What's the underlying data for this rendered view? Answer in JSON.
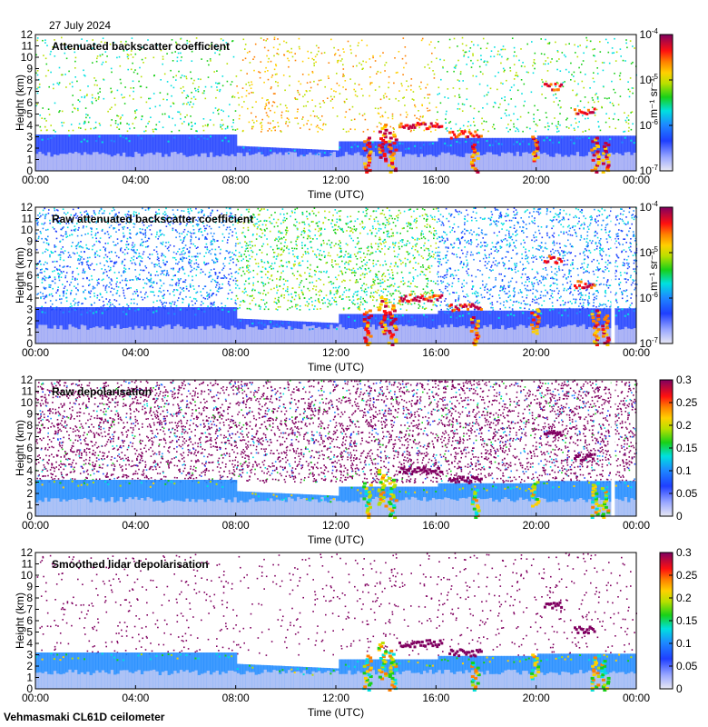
{
  "header": {
    "date": "27 July 2024"
  },
  "footer": {
    "site": "Vehmasmaki CL61D ceilometer"
  },
  "colors": {
    "plot_background": "#ffffff",
    "colormap": [
      "#e8e8f4",
      "#1f3fff",
      "#1d8aff",
      "#00e0e0",
      "#18d018",
      "#b8e000",
      "#ffd000",
      "#ff8000",
      "#ff1010",
      "#c00040",
      "#800060"
    ]
  },
  "chart_data": [
    {
      "type": "heatmap",
      "title": "Attenuated backscatter coefficient",
      "xlabel": "Time (UTC)",
      "ylabel": "Height (km)",
      "x_ticks": [
        "00:00",
        "04:00",
        "08:00",
        "12:00",
        "16:00",
        "20:00",
        "00:00"
      ],
      "y_ticks": [
        "0",
        "1",
        "2",
        "3",
        "4",
        "5",
        "6",
        "7",
        "8",
        "9",
        "10",
        "11",
        "12"
      ],
      "ylim": [
        0,
        12
      ],
      "colorbar": {
        "scale": "log",
        "unit": "m⁻¹ sr⁻¹",
        "range": [
          1e-07,
          0.0001
        ],
        "ticks": [
          [
            "10",
            "-7"
          ],
          [
            "10",
            "-6"
          ],
          [
            "10",
            "-5"
          ],
          [
            "10",
            "-4"
          ]
        ]
      }
    },
    {
      "type": "heatmap",
      "title": "Raw attenuated backscatter coefficient",
      "xlabel": "Time (UTC)",
      "ylabel": "Height (km)",
      "x_ticks": [
        "00:00",
        "04:00",
        "08:00",
        "12:00",
        "16:00",
        "20:00",
        "00:00"
      ],
      "y_ticks": [
        "0",
        "1",
        "2",
        "3",
        "4",
        "5",
        "6",
        "7",
        "8",
        "9",
        "10",
        "11",
        "12"
      ],
      "ylim": [
        0,
        12
      ],
      "colorbar": {
        "scale": "log",
        "unit": "m⁻¹ sr⁻¹",
        "range": [
          1e-07,
          0.0001
        ],
        "ticks": [
          [
            "10",
            "-7"
          ],
          [
            "10",
            "-6"
          ],
          [
            "10",
            "-5"
          ],
          [
            "10",
            "-4"
          ]
        ]
      }
    },
    {
      "type": "heatmap",
      "title": "Raw depolarisation",
      "xlabel": "Time (UTC)",
      "ylabel": "Height (km)",
      "x_ticks": [
        "00:00",
        "04:00",
        "08:00",
        "12:00",
        "16:00",
        "20:00",
        "00:00"
      ],
      "y_ticks": [
        "0",
        "1",
        "2",
        "3",
        "4",
        "5",
        "6",
        "7",
        "8",
        "9",
        "10",
        "11",
        "12"
      ],
      "ylim": [
        0,
        12
      ],
      "colorbar": {
        "scale": "linear",
        "unit": "",
        "range": [
          0,
          0.3
        ],
        "ticks": [
          "0",
          "0.05",
          "0.1",
          "0.15",
          "0.2",
          "0.25",
          "0.3"
        ]
      }
    },
    {
      "type": "heatmap",
      "title": "Smoothed lidar depolarisation",
      "xlabel": "Time (UTC)",
      "ylabel": "Height (km)",
      "x_ticks": [
        "00:00",
        "04:00",
        "08:00",
        "12:00",
        "16:00",
        "20:00",
        "00:00"
      ],
      "y_ticks": [
        "0",
        "1",
        "2",
        "3",
        "4",
        "5",
        "6",
        "7",
        "8",
        "9",
        "10",
        "11",
        "12"
      ],
      "ylim": [
        0,
        12
      ],
      "colorbar": {
        "scale": "linear",
        "unit": "",
        "range": [
          0,
          0.3
        ],
        "ticks": [
          "0",
          "0.05",
          "0.1",
          "0.15",
          "0.2",
          "0.25",
          "0.3"
        ]
      }
    }
  ]
}
